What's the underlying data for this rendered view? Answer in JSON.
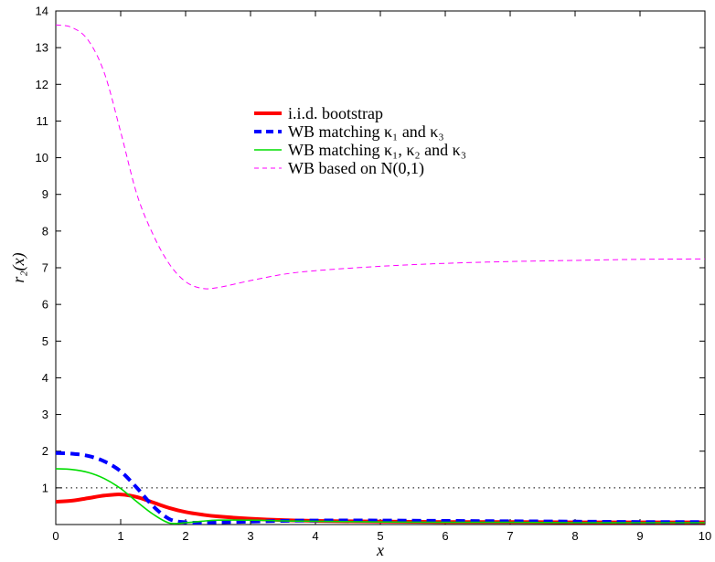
{
  "chart_data": {
    "type": "line",
    "xlabel": "x",
    "ylabel": "r₂(x)",
    "xlim": [
      0,
      10
    ],
    "ylim": [
      0,
      14
    ],
    "xticks": [
      "0",
      "1",
      "2",
      "3",
      "4",
      "5",
      "6",
      "7",
      "8",
      "9",
      "10"
    ],
    "yticks": [
      "1",
      "2",
      "3",
      "4",
      "5",
      "6",
      "7",
      "8",
      "9",
      "10",
      "11",
      "12",
      "13",
      "14"
    ],
    "grid": false,
    "legend_position": "center-top",
    "x": [
      0,
      0.25,
      0.5,
      0.75,
      1,
      1.25,
      1.5,
      1.75,
      2,
      2.25,
      2.5,
      3,
      3.5,
      4,
      5,
      6,
      7,
      8,
      9,
      10
    ],
    "series": [
      {
        "name": "i.i.d. bootstrap",
        "color": "#ff0000",
        "style": "solid-thick",
        "values": [
          0.62,
          0.65,
          0.72,
          0.79,
          0.82,
          0.75,
          0.6,
          0.45,
          0.34,
          0.27,
          0.22,
          0.16,
          0.12,
          0.1,
          0.08,
          0.07,
          0.07,
          0.06,
          0.06,
          0.06
        ]
      },
      {
        "name": "WB matching κ₁ and κ₃",
        "color": "#0000ff",
        "style": "dashed-thick",
        "values": [
          1.95,
          1.93,
          1.87,
          1.72,
          1.45,
          1.0,
          0.5,
          0.15,
          0.06,
          0.05,
          0.06,
          0.08,
          0.1,
          0.11,
          0.11,
          0.1,
          0.09,
          0.08,
          0.07,
          0.07
        ]
      },
      {
        "name": "WB matching κ₁, κ₂ and κ₃",
        "color": "#00dd00",
        "style": "solid",
        "values": [
          1.52,
          1.5,
          1.42,
          1.25,
          0.98,
          0.62,
          0.28,
          0.04,
          0.05,
          0.09,
          0.12,
          0.12,
          0.1,
          0.09,
          0.07,
          0.06,
          0.06,
          0.05,
          0.05,
          0.05
        ]
      },
      {
        "name": "WB based on N(0,1)",
        "color": "#ff00ff",
        "style": "dashed-thin",
        "values": [
          13.62,
          13.55,
          13.2,
          12.3,
          10.7,
          9.0,
          7.9,
          7.1,
          6.62,
          6.44,
          6.46,
          6.65,
          6.82,
          6.92,
          7.04,
          7.12,
          7.17,
          7.2,
          7.23,
          7.24
        ]
      }
    ],
    "reference_line": {
      "y": 1,
      "color": "#000000",
      "style": "dotted"
    },
    "legend": [
      {
        "series": 0,
        "text": "i.i.d. bootstrap"
      },
      {
        "series": 1,
        "text": "WB matching κ₁ and κ₃"
      },
      {
        "series": 2,
        "text": "WB matching κ₁, κ₂ and κ₃"
      },
      {
        "series": 3,
        "text": "WB based on N(0,1)"
      }
    ]
  }
}
